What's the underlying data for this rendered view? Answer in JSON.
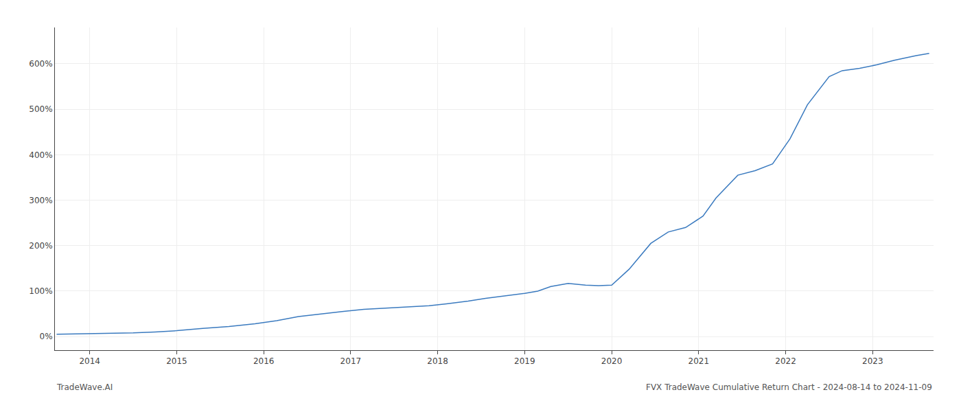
{
  "chart_data": {
    "type": "line",
    "x": [
      2013.62,
      2014.0,
      2014.15,
      2014.5,
      2014.75,
      2015.0,
      2015.3,
      2015.6,
      2015.9,
      2016.15,
      2016.4,
      2016.65,
      2016.9,
      2017.15,
      2017.4,
      2017.65,
      2017.9,
      2018.1,
      2018.35,
      2018.55,
      2018.8,
      2019.0,
      2019.15,
      2019.3,
      2019.5,
      2019.7,
      2019.85,
      2020.0,
      2020.2,
      2020.45,
      2020.65,
      2020.85,
      2021.05,
      2021.2,
      2021.45,
      2021.65,
      2021.85,
      2022.05,
      2022.25,
      2022.5,
      2022.65,
      2022.85,
      2023.05,
      2023.25,
      2023.5,
      2023.65
    ],
    "values": [
      5,
      6,
      7,
      8,
      10,
      13,
      18,
      22,
      28,
      35,
      44,
      50,
      55,
      60,
      63,
      65,
      68,
      72,
      78,
      84,
      90,
      95,
      100,
      110,
      117,
      113,
      112,
      113,
      148,
      205,
      230,
      240,
      265,
      305,
      355,
      365,
      380,
      435,
      510,
      572,
      585,
      590,
      598,
      608,
      618,
      623
    ],
    "color": "#3a7abf",
    "xlim": [
      2013.6,
      2023.7
    ],
    "ylim": [
      -30,
      680
    ],
    "xticks": [
      2014,
      2015,
      2016,
      2017,
      2018,
      2019,
      2020,
      2021,
      2022,
      2023
    ],
    "yticks": [
      {
        "value": 0,
        "label": "0%"
      },
      {
        "value": 100,
        "label": "100%"
      },
      {
        "value": 200,
        "label": "200%"
      },
      {
        "value": 300,
        "label": "300%"
      },
      {
        "value": 400,
        "label": "400%"
      },
      {
        "value": 500,
        "label": "500%"
      },
      {
        "value": 600,
        "label": "600%"
      }
    ],
    "grid": true,
    "annotations": [
      "TradeWave.AI",
      "FVX TradeWave Cumulative Return Chart - 2024-08-14 to 2024-11-09"
    ]
  }
}
